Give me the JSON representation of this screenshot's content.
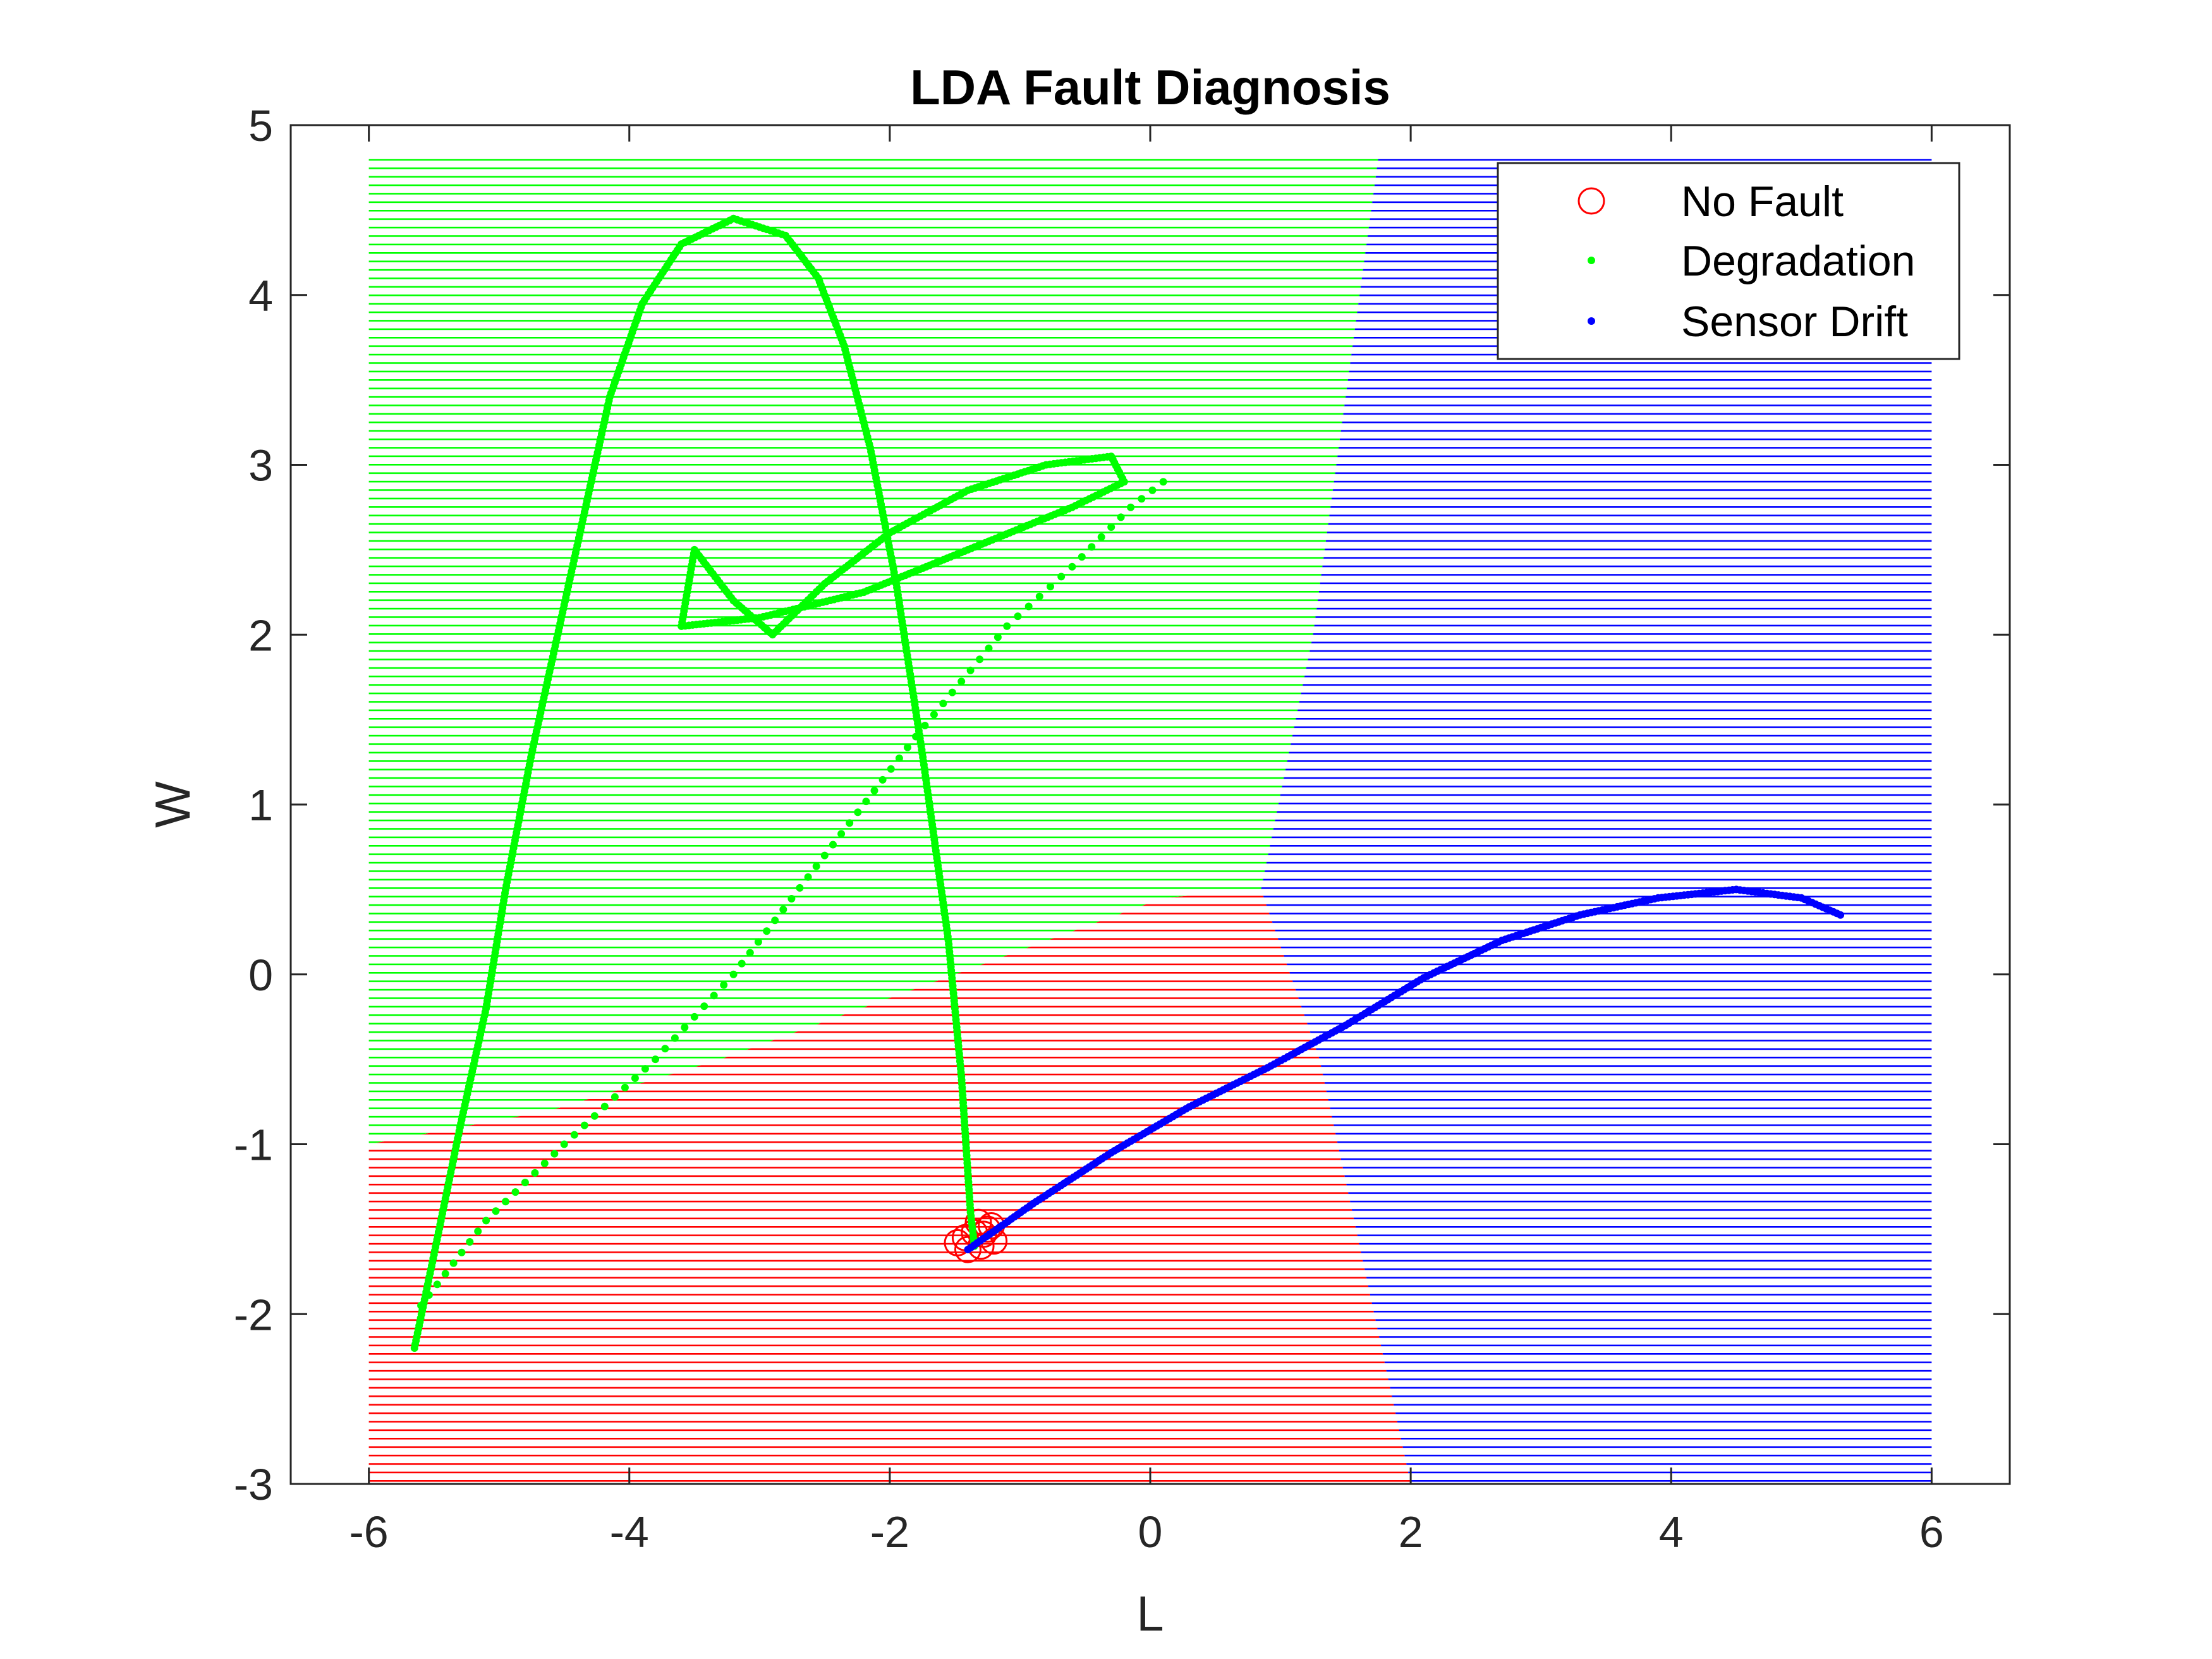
{
  "chart_data": {
    "type": "scatter",
    "title": "LDA Fault Diagnosis",
    "xlabel": "L",
    "ylabel": "W",
    "xlim": [
      -6.6,
      6.6
    ],
    "ylim": [
      -3,
      5
    ],
    "xticks": [
      -6,
      -4,
      -2,
      0,
      2,
      4,
      6
    ],
    "yticks": [
      -3,
      -2,
      -1,
      0,
      1,
      2,
      3,
      4,
      5
    ],
    "xtick_labels": [
      "-6",
      "-4",
      "-2",
      "0",
      "2",
      "4",
      "6"
    ],
    "ytick_labels": [
      "-3",
      "-2",
      "-1",
      "0",
      "1",
      "2",
      "3",
      "4",
      "5"
    ],
    "grid": false,
    "legend_position": "top-right",
    "regions": [
      {
        "name": "No Fault",
        "color": "#ff0000",
        "polygon": [
          [
            -6,
            -3
          ],
          [
            2,
            -3
          ],
          [
            1.3,
            -0.5
          ],
          [
            0.85,
            0.5
          ],
          [
            0.1,
            0.45
          ],
          [
            -1.5,
            0.0
          ],
          [
            -3.3,
            -0.5
          ],
          [
            -4.6,
            -0.8
          ],
          [
            -6,
            -1.0
          ]
        ]
      },
      {
        "name": "Degradation",
        "color": "#00ff00",
        "polygon": [
          [
            -6,
            -1.0
          ],
          [
            -4.6,
            -0.8
          ],
          [
            -3.3,
            -0.5
          ],
          [
            -1.5,
            0.0
          ],
          [
            0.1,
            0.45
          ],
          [
            0.85,
            0.5
          ],
          [
            1.25,
            2.0
          ],
          [
            1.75,
            4.8
          ],
          [
            -6,
            4.8
          ]
        ]
      },
      {
        "name": "Sensor Drift",
        "color": "#0000ff",
        "polygon": [
          [
            2,
            -3
          ],
          [
            6,
            -3
          ],
          [
            6,
            4.8
          ],
          [
            1.75,
            4.8
          ],
          [
            1.25,
            2.0
          ],
          [
            0.85,
            0.5
          ],
          [
            1.3,
            -0.5
          ]
        ]
      }
    ],
    "series": [
      {
        "name": "No Fault",
        "color": "#ff0000",
        "marker": "circle",
        "points": [
          [
            -1.48,
            -1.58
          ],
          [
            -1.42,
            -1.55
          ],
          [
            -1.35,
            -1.52
          ],
          [
            -1.3,
            -1.6
          ],
          [
            -1.25,
            -1.5
          ],
          [
            -1.2,
            -1.57
          ],
          [
            -1.32,
            -1.46
          ],
          [
            -1.4,
            -1.62
          ],
          [
            -1.28,
            -1.53
          ],
          [
            -1.22,
            -1.48
          ]
        ]
      },
      {
        "name": "Degradation",
        "color": "#00ff00",
        "marker": "dot",
        "paths": [
          [
            [
              -5.65,
              -2.2
            ],
            [
              -5.5,
              -1.65
            ],
            [
              -5.3,
              -0.9
            ],
            [
              -5.1,
              -0.2
            ],
            [
              -4.95,
              0.5
            ],
            [
              -4.75,
              1.3
            ],
            [
              -4.55,
              2.0
            ],
            [
              -4.35,
              2.7
            ],
            [
              -4.15,
              3.4
            ],
            [
              -3.9,
              3.95
            ],
            [
              -3.6,
              4.3
            ],
            [
              -3.2,
              4.45
            ],
            [
              -2.8,
              4.35
            ],
            [
              -2.55,
              4.1
            ],
            [
              -2.35,
              3.7
            ],
            [
              -2.15,
              3.1
            ],
            [
              -1.95,
              2.3
            ],
            [
              -1.75,
              1.3
            ],
            [
              -1.55,
              0.2
            ],
            [
              -1.45,
              -0.6
            ],
            [
              -1.38,
              -1.4
            ],
            [
              -1.35,
              -1.6
            ]
          ],
          [
            [
              -5.6,
              -1.95
            ],
            [
              -5.1,
              -1.45
            ],
            [
              -4.5,
              -1.0
            ],
            [
              -3.8,
              -0.5
            ],
            [
              -3.2,
              0.0
            ],
            [
              -2.5,
              0.7
            ],
            [
              -1.8,
              1.4
            ],
            [
              -1.1,
              2.05
            ],
            [
              -0.6,
              2.4
            ],
            [
              -0.15,
              2.75
            ],
            [
              0.1,
              2.9
            ]
          ],
          [
            [
              -3.6,
              2.05
            ],
            [
              -3.5,
              2.5
            ],
            [
              -3.2,
              2.2
            ],
            [
              -2.9,
              2.0
            ],
            [
              -2.5,
              2.3
            ],
            [
              -2.0,
              2.6
            ],
            [
              -1.4,
              2.85
            ],
            [
              -0.8,
              3.0
            ],
            [
              -0.3,
              3.05
            ],
            [
              -0.2,
              2.9
            ],
            [
              -0.6,
              2.75
            ],
            [
              -1.4,
              2.5
            ],
            [
              -2.2,
              2.25
            ],
            [
              -3.0,
              2.1
            ],
            [
              -3.6,
              2.05
            ]
          ]
        ]
      },
      {
        "name": "Sensor Drift",
        "color": "#0000ff",
        "marker": "dot",
        "path": [
          [
            -1.4,
            -1.62
          ],
          [
            -0.9,
            -1.35
          ],
          [
            -0.3,
            -1.05
          ],
          [
            0.3,
            -0.78
          ],
          [
            0.9,
            -0.55
          ],
          [
            1.5,
            -0.3
          ],
          [
            2.1,
            -0.02
          ],
          [
            2.7,
            0.2
          ],
          [
            3.3,
            0.35
          ],
          [
            3.9,
            0.45
          ],
          [
            4.5,
            0.5
          ],
          [
            5.0,
            0.45
          ],
          [
            5.3,
            0.35
          ]
        ]
      }
    ]
  }
}
